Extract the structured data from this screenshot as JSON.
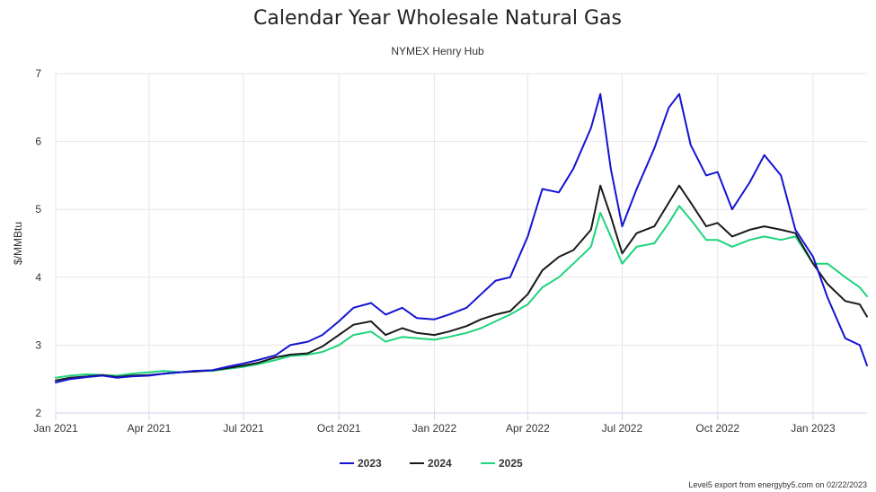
{
  "chart_data": {
    "type": "line",
    "title": "Calendar Year Wholesale Natural Gas",
    "subtitle": "NYMEX Henry Hub",
    "ylabel": "$/MMBtu",
    "xlabel": "",
    "ylim": [
      2,
      7
    ],
    "yticks": [
      2,
      3,
      4,
      5,
      6,
      7
    ],
    "xlim": [
      "2021-01-01",
      "2023-02-22"
    ],
    "xticks": [
      {
        "date": "2021-01-01",
        "label": "Jan 2021"
      },
      {
        "date": "2021-04-01",
        "label": "Apr 2021"
      },
      {
        "date": "2021-07-01",
        "label": "Jul 2021"
      },
      {
        "date": "2021-10-01",
        "label": "Oct 2021"
      },
      {
        "date": "2022-01-01",
        "label": "Jan 2022"
      },
      {
        "date": "2022-04-01",
        "label": "Apr 2022"
      },
      {
        "date": "2022-07-01",
        "label": "Jul 2022"
      },
      {
        "date": "2022-10-01",
        "label": "Oct 2022"
      },
      {
        "date": "2023-01-01",
        "label": "Jan 2023"
      }
    ],
    "grid": true,
    "legend": "bottom-center",
    "credit": "Level5 export from energyby5.com on 02/22/2023",
    "series": [
      {
        "name": "2023",
        "color": "#1414d2",
        "points": [
          [
            "2021-01-01",
            2.45
          ],
          [
            "2021-01-15",
            2.5
          ],
          [
            "2021-02-01",
            2.53
          ],
          [
            "2021-02-15",
            2.55
          ],
          [
            "2021-03-01",
            2.52
          ],
          [
            "2021-03-15",
            2.54
          ],
          [
            "2021-04-01",
            2.55
          ],
          [
            "2021-04-15",
            2.58
          ],
          [
            "2021-05-01",
            2.6
          ],
          [
            "2021-05-15",
            2.62
          ],
          [
            "2021-06-01",
            2.63
          ],
          [
            "2021-06-15",
            2.68
          ],
          [
            "2021-07-01",
            2.73
          ],
          [
            "2021-07-15",
            2.78
          ],
          [
            "2021-08-01",
            2.85
          ],
          [
            "2021-08-15",
            3.0
          ],
          [
            "2021-09-01",
            3.05
          ],
          [
            "2021-09-15",
            3.15
          ],
          [
            "2021-10-01",
            3.35
          ],
          [
            "2021-10-15",
            3.55
          ],
          [
            "2021-11-01",
            3.62
          ],
          [
            "2021-11-15",
            3.45
          ],
          [
            "2021-12-01",
            3.55
          ],
          [
            "2021-12-15",
            3.4
          ],
          [
            "2022-01-01",
            3.38
          ],
          [
            "2022-01-15",
            3.45
          ],
          [
            "2022-02-01",
            3.55
          ],
          [
            "2022-02-15",
            3.75
          ],
          [
            "2022-03-01",
            3.95
          ],
          [
            "2022-03-15",
            4.0
          ],
          [
            "2022-04-01",
            4.6
          ],
          [
            "2022-04-15",
            5.3
          ],
          [
            "2022-05-01",
            5.25
          ],
          [
            "2022-05-15",
            5.6
          ],
          [
            "2022-06-01",
            6.2
          ],
          [
            "2022-06-10",
            6.7
          ],
          [
            "2022-06-20",
            5.6
          ],
          [
            "2022-07-01",
            4.75
          ],
          [
            "2022-07-15",
            5.3
          ],
          [
            "2022-08-01",
            5.9
          ],
          [
            "2022-08-15",
            6.5
          ],
          [
            "2022-08-25",
            6.7
          ],
          [
            "2022-09-05",
            5.95
          ],
          [
            "2022-09-20",
            5.5
          ],
          [
            "2022-10-01",
            5.55
          ],
          [
            "2022-10-15",
            5.0
          ],
          [
            "2022-11-01",
            5.4
          ],
          [
            "2022-11-15",
            5.8
          ],
          [
            "2022-12-01",
            5.5
          ],
          [
            "2022-12-15",
            4.7
          ],
          [
            "2023-01-01",
            4.3
          ],
          [
            "2023-01-15",
            3.7
          ],
          [
            "2023-02-01",
            3.1
          ],
          [
            "2023-02-15",
            3.0
          ],
          [
            "2023-02-22",
            2.7
          ]
        ]
      },
      {
        "name": "2024",
        "color": "#1a1a1a",
        "points": [
          [
            "2021-01-01",
            2.48
          ],
          [
            "2021-01-15",
            2.52
          ],
          [
            "2021-02-01",
            2.54
          ],
          [
            "2021-02-15",
            2.56
          ],
          [
            "2021-03-01",
            2.53
          ],
          [
            "2021-03-15",
            2.55
          ],
          [
            "2021-04-01",
            2.56
          ],
          [
            "2021-04-15",
            2.58
          ],
          [
            "2021-05-01",
            2.6
          ],
          [
            "2021-05-15",
            2.61
          ],
          [
            "2021-06-01",
            2.63
          ],
          [
            "2021-06-15",
            2.66
          ],
          [
            "2021-07-01",
            2.7
          ],
          [
            "2021-07-15",
            2.74
          ],
          [
            "2021-08-01",
            2.82
          ],
          [
            "2021-08-15",
            2.86
          ],
          [
            "2021-09-01",
            2.88
          ],
          [
            "2021-09-15",
            2.98
          ],
          [
            "2021-10-01",
            3.15
          ],
          [
            "2021-10-15",
            3.3
          ],
          [
            "2021-11-01",
            3.35
          ],
          [
            "2021-11-15",
            3.15
          ],
          [
            "2021-12-01",
            3.25
          ],
          [
            "2021-12-15",
            3.18
          ],
          [
            "2022-01-01",
            3.15
          ],
          [
            "2022-01-15",
            3.2
          ],
          [
            "2022-02-01",
            3.28
          ],
          [
            "2022-02-15",
            3.38
          ],
          [
            "2022-03-01",
            3.45
          ],
          [
            "2022-03-15",
            3.5
          ],
          [
            "2022-04-01",
            3.75
          ],
          [
            "2022-04-15",
            4.1
          ],
          [
            "2022-05-01",
            4.3
          ],
          [
            "2022-05-15",
            4.4
          ],
          [
            "2022-06-01",
            4.7
          ],
          [
            "2022-06-10",
            5.35
          ],
          [
            "2022-06-20",
            4.9
          ],
          [
            "2022-07-01",
            4.35
          ],
          [
            "2022-07-15",
            4.65
          ],
          [
            "2022-08-01",
            4.75
          ],
          [
            "2022-08-15",
            5.1
          ],
          [
            "2022-08-25",
            5.35
          ],
          [
            "2022-09-05",
            5.1
          ],
          [
            "2022-09-20",
            4.75
          ],
          [
            "2022-10-01",
            4.8
          ],
          [
            "2022-10-15",
            4.6
          ],
          [
            "2022-11-01",
            4.7
          ],
          [
            "2022-11-15",
            4.75
          ],
          [
            "2022-12-01",
            4.7
          ],
          [
            "2022-12-15",
            4.65
          ],
          [
            "2023-01-01",
            4.2
          ],
          [
            "2023-01-15",
            3.9
          ],
          [
            "2023-02-01",
            3.65
          ],
          [
            "2023-02-15",
            3.6
          ],
          [
            "2023-02-22",
            3.42
          ]
        ]
      },
      {
        "name": "2025",
        "color": "#1ed47c",
        "points": [
          [
            "2021-01-01",
            2.52
          ],
          [
            "2021-01-15",
            2.55
          ],
          [
            "2021-02-01",
            2.57
          ],
          [
            "2021-02-15",
            2.56
          ],
          [
            "2021-03-01",
            2.55
          ],
          [
            "2021-03-15",
            2.58
          ],
          [
            "2021-04-01",
            2.6
          ],
          [
            "2021-04-15",
            2.62
          ],
          [
            "2021-05-01",
            2.6
          ],
          [
            "2021-05-15",
            2.62
          ],
          [
            "2021-06-01",
            2.62
          ],
          [
            "2021-06-15",
            2.65
          ],
          [
            "2021-07-01",
            2.68
          ],
          [
            "2021-07-15",
            2.72
          ],
          [
            "2021-08-01",
            2.78
          ],
          [
            "2021-08-15",
            2.84
          ],
          [
            "2021-09-01",
            2.86
          ],
          [
            "2021-09-15",
            2.9
          ],
          [
            "2021-10-01",
            3.0
          ],
          [
            "2021-10-15",
            3.15
          ],
          [
            "2021-11-01",
            3.2
          ],
          [
            "2021-11-15",
            3.05
          ],
          [
            "2021-12-01",
            3.12
          ],
          [
            "2021-12-15",
            3.1
          ],
          [
            "2022-01-01",
            3.08
          ],
          [
            "2022-01-15",
            3.12
          ],
          [
            "2022-02-01",
            3.18
          ],
          [
            "2022-02-15",
            3.25
          ],
          [
            "2022-03-01",
            3.35
          ],
          [
            "2022-03-15",
            3.45
          ],
          [
            "2022-04-01",
            3.6
          ],
          [
            "2022-04-15",
            3.85
          ],
          [
            "2022-05-01",
            4.0
          ],
          [
            "2022-05-15",
            4.2
          ],
          [
            "2022-06-01",
            4.45
          ],
          [
            "2022-06-10",
            4.95
          ],
          [
            "2022-06-20",
            4.6
          ],
          [
            "2022-07-01",
            4.2
          ],
          [
            "2022-07-15",
            4.45
          ],
          [
            "2022-08-01",
            4.5
          ],
          [
            "2022-08-15",
            4.8
          ],
          [
            "2022-08-25",
            5.05
          ],
          [
            "2022-09-05",
            4.85
          ],
          [
            "2022-09-20",
            4.55
          ],
          [
            "2022-10-01",
            4.55
          ],
          [
            "2022-10-15",
            4.45
          ],
          [
            "2022-11-01",
            4.55
          ],
          [
            "2022-11-15",
            4.6
          ],
          [
            "2022-12-01",
            4.55
          ],
          [
            "2022-12-15",
            4.6
          ],
          [
            "2023-01-01",
            4.2
          ],
          [
            "2023-01-15",
            4.2
          ],
          [
            "2023-02-01",
            4.0
          ],
          [
            "2023-02-15",
            3.85
          ],
          [
            "2023-02-22",
            3.72
          ]
        ]
      }
    ]
  }
}
